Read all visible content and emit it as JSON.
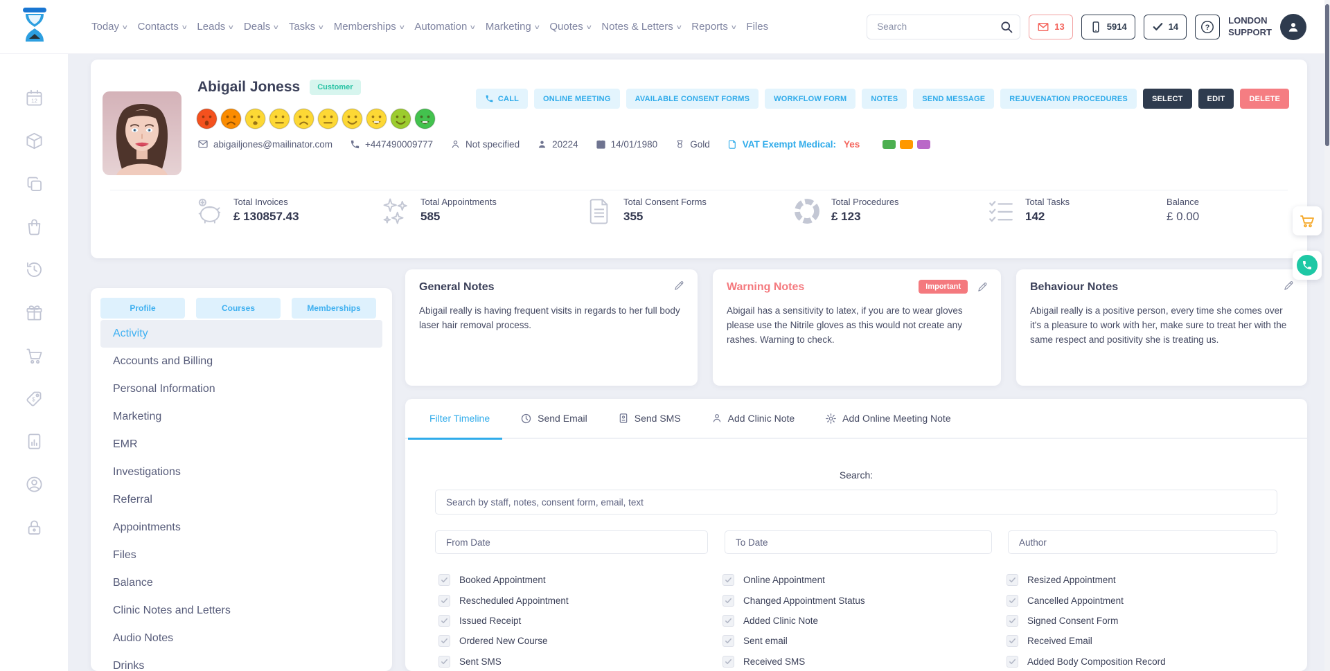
{
  "colors": {
    "accent_blue": "#2fabea",
    "light_blue_bg": "#e3f4fd",
    "dark_navy": "#2e3b4e",
    "danger": "#f4797e",
    "teal_badge_bg": "#d7f5ee",
    "teal_badge_text": "#29c3a4",
    "vat_yes_red": "#f4665e",
    "tag_colors": [
      "#4caf50",
      "#ff9800",
      "#ba68c8"
    ],
    "cart_fab_icon": "#f5a623",
    "phone_fab_bg": "#1ec8a5"
  },
  "icons": {
    "search": "magnifier",
    "email_badge": "envelope",
    "phone_badge": "smartphone",
    "task_badge": "checkmark",
    "help": "question-circle",
    "account": "avatar-person",
    "cart_fab": "shopping-cart",
    "phone_fab": "call"
  },
  "header": {
    "search_placeholder": "Search",
    "email_count": "13",
    "phone_count": "5914",
    "task_count": "14",
    "location_line1": "LONDON",
    "location_line2": "SUPPORT",
    "nav": [
      {
        "label": "Today",
        "caret": "∨"
      },
      {
        "label": "Contacts",
        "caret": "∨"
      },
      {
        "label": "Leads",
        "caret": "∨"
      },
      {
        "label": "Deals",
        "caret": "∨"
      },
      {
        "label": "Tasks",
        "caret": "∨"
      },
      {
        "label": "Memberships",
        "caret": "∨"
      },
      {
        "label": "Automation",
        "caret": "∨"
      },
      {
        "label": "Marketing",
        "caret": "∨"
      },
      {
        "label": "Quotes",
        "caret": "∨"
      },
      {
        "label": "Notes & Letters",
        "caret": "∨"
      },
      {
        "label": "Reports",
        "caret": "∨"
      },
      {
        "label": "Files",
        "caret": ""
      }
    ]
  },
  "sidebar_icons": [
    "calendar-icon",
    "package-icon",
    "copy-icon",
    "shopping-bag-icon",
    "history-icon",
    "gift-icon",
    "cart-icon",
    "price-tag-icon",
    "report-icon",
    "user-clock-icon",
    "lock-icon"
  ],
  "profile": {
    "name": "Abigail Joness",
    "type_badge": "Customer",
    "email": "abigailjones@mailinator.com",
    "phone": "+447490009777",
    "gender": "Not specified",
    "customer_id": "20224",
    "birth_date": "14/01/1980",
    "tier": "Gold",
    "vat_label": "VAT Exempt Medical:",
    "vat_value": "Yes",
    "satisfaction": [
      {
        "color": "#f4511e",
        "mood": "cry"
      },
      {
        "color": "#fb8c00",
        "mood": "frown"
      },
      {
        "color": "#fdd835",
        "mood": "open"
      },
      {
        "color": "#fdd835",
        "mood": "neutral"
      },
      {
        "color": "#fdd835",
        "mood": "frown"
      },
      {
        "color": "#fdd835",
        "mood": "neutral"
      },
      {
        "color": "#fdd835",
        "mood": "smile"
      },
      {
        "color": "#fdd835",
        "mood": "grin"
      },
      {
        "color": "#9ccc2e",
        "mood": "smile"
      },
      {
        "color": "#43c24e",
        "mood": "grin"
      }
    ],
    "actions": [
      "CALL",
      "ONLINE MEETING",
      "AVAILABLE CONSENT FORMS",
      "WORKFLOW FORM",
      "NOTES",
      "SEND MESSAGE",
      "REJUVENATION PROCEDURES",
      "SELECT",
      "EDIT",
      "DELETE"
    ]
  },
  "stats": [
    {
      "label": "Total Invoices",
      "value": "£ 130857.43"
    },
    {
      "label": "Total Appointments",
      "value": "585"
    },
    {
      "label": "Total Consent Forms",
      "value": "355"
    },
    {
      "label": "Total Procedures",
      "value": "£ 123"
    },
    {
      "label": "Total Tasks",
      "value": "142"
    },
    {
      "label": "Balance",
      "value": "£ 0.00"
    }
  ],
  "left_panel": {
    "tabs": [
      "Profile",
      "Courses",
      "Memberships"
    ],
    "menu": [
      {
        "label": "Activity",
        "active": true
      },
      {
        "label": "Accounts and Billing"
      },
      {
        "label": "Personal Information"
      },
      {
        "label": "Marketing"
      },
      {
        "label": "EMR"
      },
      {
        "label": "Investigations"
      },
      {
        "label": "Referral"
      },
      {
        "label": "Appointments"
      },
      {
        "label": "Files"
      },
      {
        "label": "Balance"
      },
      {
        "label": "Clinic Notes and Letters"
      },
      {
        "label": "Audio Notes"
      },
      {
        "label": "Drinks"
      }
    ]
  },
  "notes": {
    "general": {
      "title": "General Notes",
      "body": "Abigail really is having frequent visits in regards to her full body laser hair removal process."
    },
    "warning": {
      "title": "Warning Notes",
      "badge": "Important",
      "body": "Abigail has a sensitivity to latex, if you are to wear gloves please use the Nitrile gloves as this would not create any rashes. Warning to check."
    },
    "behaviour": {
      "title": "Behaviour Notes",
      "body": "Abigail really is a positive person, every time she comes over it's a pleasure to work with her, make sure to treat her with the same respect and positivity she is treating us."
    }
  },
  "timeline": {
    "tabs": [
      "Filter Timeline",
      "Send Email",
      "Send SMS",
      "Add Clinic Note",
      "Add Online Meeting Note"
    ],
    "search_label": "Search:",
    "search_placeholder": "Search by staff, notes, consent form, email, text",
    "from_placeholder": "From Date",
    "to_placeholder": "To Date",
    "author_placeholder": "Author",
    "filters": {
      "col1": [
        "Booked Appointment",
        "Rescheduled Appointment",
        "Issued Receipt",
        "Ordered New Course",
        "Sent SMS"
      ],
      "col2": [
        "Online Appointment",
        "Changed Appointment Status",
        "Added Clinic Note",
        "Sent email",
        "Received SMS"
      ],
      "col3": [
        "Resized Appointment",
        "Cancelled Appointment",
        "Signed Consent Form",
        "Received Email",
        "Added Body Composition Record"
      ]
    }
  }
}
